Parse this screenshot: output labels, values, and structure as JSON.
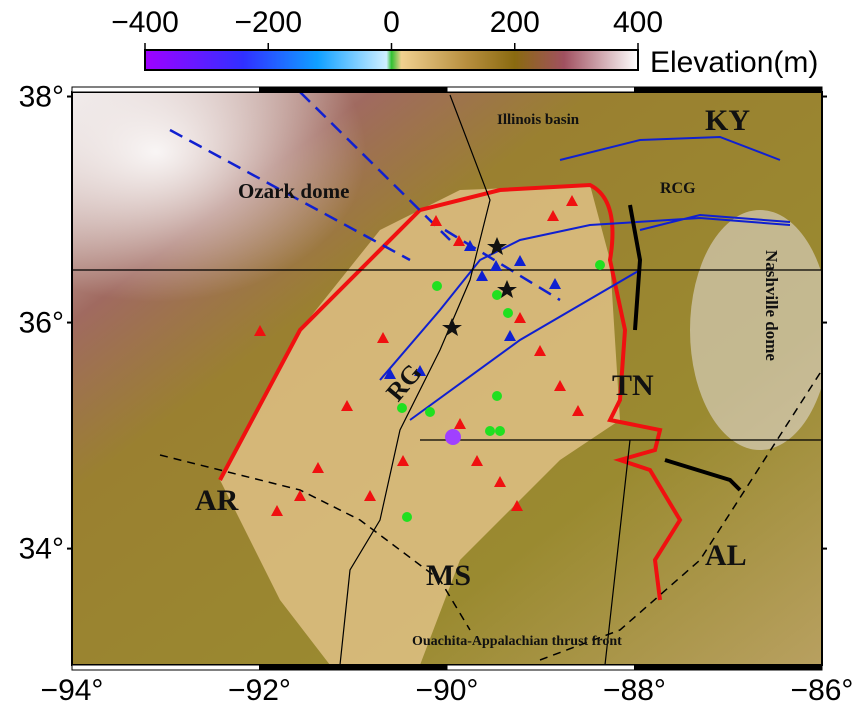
{
  "colorbar": {
    "label": "Elevation(m)",
    "range": [
      -400,
      400
    ],
    "ticks": [
      {
        "value": -400,
        "label": "−400"
      },
      {
        "value": -200,
        "label": "−200"
      },
      {
        "value": 0,
        "label": "0"
      },
      {
        "value": 200,
        "label": "200"
      },
      {
        "value": 400,
        "label": "400"
      }
    ]
  },
  "map": {
    "lon_range": [
      -94,
      -86
    ],
    "lat_range": [
      32.97,
      38.04
    ],
    "lon_ticks": [
      {
        "value": -94,
        "label": "−94°"
      },
      {
        "value": -92,
        "label": "−92°"
      },
      {
        "value": -90,
        "label": "−90°"
      },
      {
        "value": -88,
        "label": "−88°"
      },
      {
        "value": -86,
        "label": "−86°"
      }
    ],
    "lat_ticks": [
      {
        "value": 34,
        "label": "34°"
      },
      {
        "value": 36,
        "label": "36°"
      },
      {
        "value": 38,
        "label": "38°"
      }
    ]
  },
  "labels": [
    "Illinois basin",
    "KY",
    "RCG",
    "Ozark dome",
    "Nashville dome",
    "RG",
    "TN",
    "AR",
    "MS",
    "AL",
    "Ouachita-Appalachian thrust front"
  ]
}
